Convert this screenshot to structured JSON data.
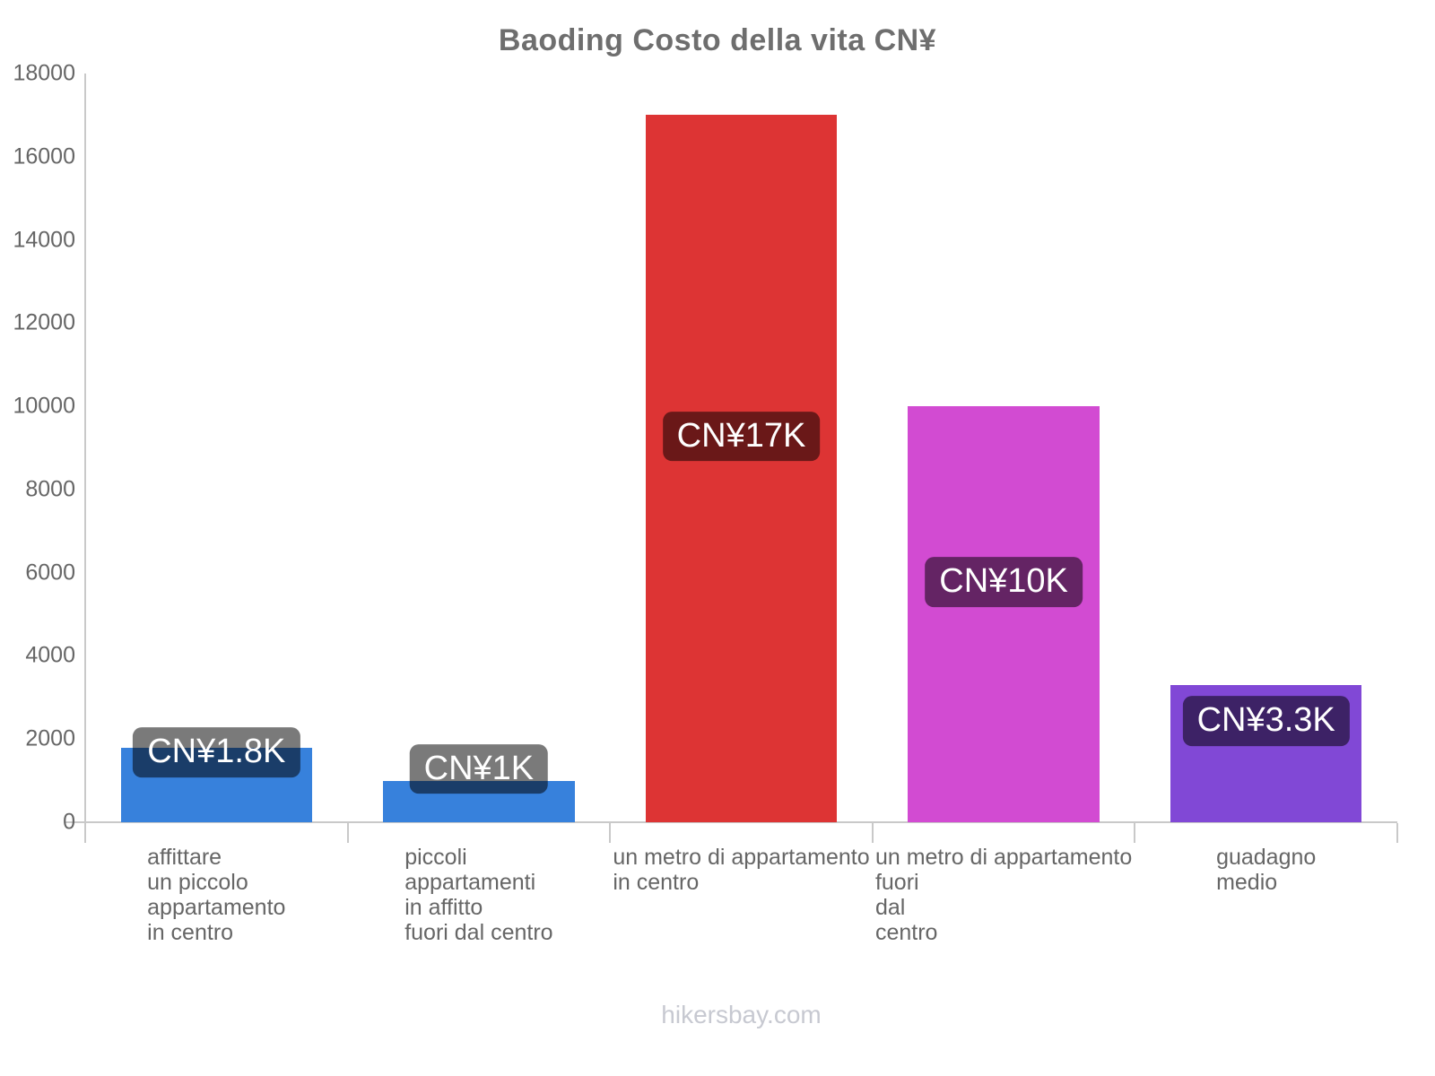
{
  "header": {
    "title": "Baoding Costo della vita CN¥"
  },
  "footer": {
    "text": "hikersbay.com"
  },
  "colors": {
    "blue": "#3781dc",
    "red": "#dd3434",
    "magenta": "#d24bd2",
    "purple": "#8148d6",
    "axis": "#c9c9c9",
    "title_text": "#6e6e6e",
    "axis_text": "#666666",
    "watermark_text": "#c7c9d1",
    "value_label_bg": "rgba(0,0,0,0.52)",
    "value_label_text": "#ffffff"
  },
  "chart_data": {
    "type": "bar",
    "title": "Baoding Costo della vita CN¥",
    "categories": [
      [
        "affittare",
        "un piccolo",
        "appartamento",
        "in centro"
      ],
      [
        "piccoli",
        "appartamenti",
        "in affitto",
        "fuori dal centro"
      ],
      [
        "un metro di appartamento",
        "in centro"
      ],
      [
        "un metro di appartamento",
        "fuori",
        "dal",
        "centro"
      ],
      [
        "guadagno",
        "medio"
      ]
    ],
    "values": [
      1800,
      1000,
      17000,
      10000,
      3300
    ],
    "value_labels": [
      "CN¥1.8K",
      "CN¥1K",
      "CN¥17K",
      "CN¥10K",
      "CN¥3.3K"
    ],
    "bar_colors": [
      "#3781dc",
      "#3781dc",
      "#dd3434",
      "#d24bd2",
      "#8148d6"
    ],
    "xlabel": "",
    "ylabel": "",
    "ylim": [
      0,
      18000
    ],
    "yticks": [
      0,
      2000,
      4000,
      6000,
      8000,
      10000,
      12000,
      14000,
      16000,
      18000
    ],
    "grid": false,
    "legend": false,
    "watermark": "hikersbay.com"
  }
}
